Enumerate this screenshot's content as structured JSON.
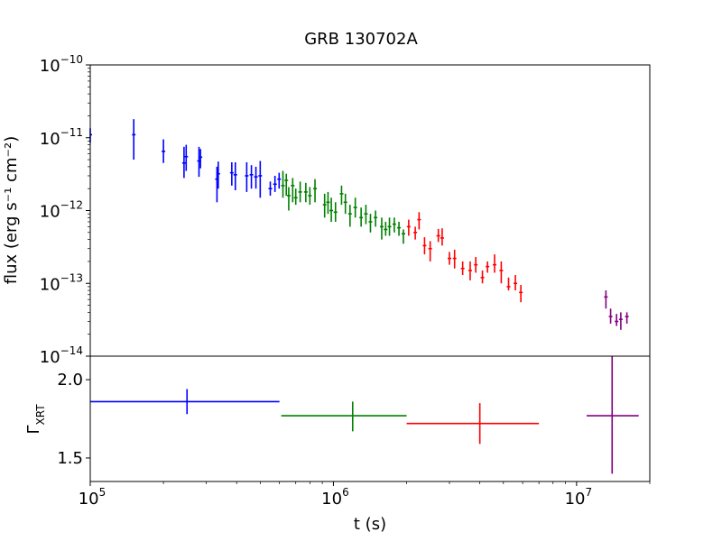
{
  "chart_data": [
    {
      "type": "scatter",
      "title": "GRB 130702A",
      "xlabel": "t (s)",
      "ylabel": "flux (erg s⁻¹ cm⁻²)",
      "xscale": "log",
      "yscale": "log",
      "xlim": [
        100000,
        20000000
      ],
      "ylim": [
        1e-14,
        1e-10
      ],
      "yticks": [
        {
          "base": "10",
          "exp": "−10"
        },
        {
          "base": "10",
          "exp": "−11"
        },
        {
          "base": "10",
          "exp": "−12"
        },
        {
          "base": "10",
          "exp": "−13"
        },
        {
          "base": "10",
          "exp": "−14"
        }
      ],
      "grid": false,
      "series": [
        {
          "color": "#0000ff",
          "points": [
            {
              "x": 100000,
              "y": 1.1e-11,
              "ylo": 8.5e-12,
              "yhi": 1.35e-11
            },
            {
              "x": 151000,
              "y": 1.1e-11,
              "ylo": 5e-12,
              "yhi": 1.8e-11
            },
            {
              "x": 200000,
              "y": 6.5e-12,
              "ylo": 4.5e-12,
              "yhi": 9.5e-12
            },
            {
              "x": 243000,
              "y": 4.5e-12,
              "ylo": 2.8e-12,
              "yhi": 7.5e-12
            },
            {
              "x": 248000,
              "y": 5.5e-12,
              "ylo": 3.5e-12,
              "yhi": 8e-12
            },
            {
              "x": 280000,
              "y": 4.8e-12,
              "ylo": 2.9e-12,
              "yhi": 7.5e-12
            },
            {
              "x": 284000,
              "y": 5.4e-12,
              "ylo": 3.8e-12,
              "yhi": 7e-12
            },
            {
              "x": 332000,
              "y": 2.7e-12,
              "ylo": 1.3e-12,
              "yhi": 4e-12
            },
            {
              "x": 336000,
              "y": 3.2e-12,
              "ylo": 2e-12,
              "yhi": 4.7e-12
            },
            {
              "x": 382000,
              "y": 3.3e-12,
              "ylo": 2.2e-12,
              "yhi": 4.6e-12
            },
            {
              "x": 395000,
              "y": 3.1e-12,
              "ylo": 1.9e-12,
              "yhi": 4.6e-12
            },
            {
              "x": 440000,
              "y": 3e-12,
              "ylo": 1.8e-12,
              "yhi": 4.6e-12
            },
            {
              "x": 460000,
              "y": 3.1e-12,
              "ylo": 2e-12,
              "yhi": 4.2e-12
            },
            {
              "x": 480000,
              "y": 2.9e-12,
              "ylo": 2e-12,
              "yhi": 4e-12
            },
            {
              "x": 500000,
              "y": 3e-12,
              "ylo": 1.5e-12,
              "yhi": 4.8e-12
            },
            {
              "x": 550000,
              "y": 2e-12,
              "ylo": 1.6e-12,
              "yhi": 2.5e-12
            },
            {
              "x": 575000,
              "y": 2.3e-12,
              "ylo": 1.8e-12,
              "yhi": 3e-12
            },
            {
              "x": 598000,
              "y": 2.7e-12,
              "ylo": 2e-12,
              "yhi": 3.3e-12
            }
          ]
        },
        {
          "color": "#008000",
          "points": [
            {
              "x": 620000,
              "y": 2.2e-12,
              "ylo": 1.5e-12,
              "yhi": 3.5e-12
            },
            {
              "x": 640000,
              "y": 2.6e-12,
              "ylo": 1.6e-12,
              "yhi": 3.2e-12
            },
            {
              "x": 655000,
              "y": 1.6e-12,
              "ylo": 1e-12,
              "yhi": 2.1e-12
            },
            {
              "x": 680000,
              "y": 2.2e-12,
              "ylo": 1.3e-12,
              "yhi": 2.8e-12
            },
            {
              "x": 700000,
              "y": 1.5e-12,
              "ylo": 1.2e-12,
              "yhi": 2e-12
            },
            {
              "x": 730000,
              "y": 1.8e-12,
              "ylo": 1.3e-12,
              "yhi": 2.5e-12
            },
            {
              "x": 770000,
              "y": 1.8e-12,
              "ylo": 1.3e-12,
              "yhi": 2.4e-12
            },
            {
              "x": 800000,
              "y": 1.6e-12,
              "ylo": 1.2e-12,
              "yhi": 2.1e-12
            },
            {
              "x": 840000,
              "y": 2e-12,
              "ylo": 1.3e-12,
              "yhi": 2.7e-12
            },
            {
              "x": 920000,
              "y": 1.2e-12,
              "ylo": 8e-13,
              "yhi": 1.7e-12
            },
            {
              "x": 950000,
              "y": 1.3e-12,
              "ylo": 9e-13,
              "yhi": 1.8e-12
            },
            {
              "x": 980000,
              "y": 1e-12,
              "ylo": 7e-13,
              "yhi": 1.5e-12
            },
            {
              "x": 1020000,
              "y": 9.5e-13,
              "ylo": 7e-13,
              "yhi": 1.3e-12
            },
            {
              "x": 1080000,
              "y": 1.7e-12,
              "ylo": 1.2e-12,
              "yhi": 2.2e-12
            },
            {
              "x": 1120000,
              "y": 1.3e-12,
              "ylo": 9e-13,
              "yhi": 1.7e-12
            },
            {
              "x": 1170000,
              "y": 9e-13,
              "ylo": 6e-13,
              "yhi": 1.2e-12
            },
            {
              "x": 1230000,
              "y": 1.1e-12,
              "ylo": 8e-13,
              "yhi": 1.5e-12
            },
            {
              "x": 1300000,
              "y": 8e-13,
              "ylo": 6e-13,
              "yhi": 1.1e-12
            },
            {
              "x": 1360000,
              "y": 9e-13,
              "ylo": 6.5e-13,
              "yhi": 1.2e-12
            },
            {
              "x": 1420000,
              "y": 7e-13,
              "ylo": 5e-13,
              "yhi": 9e-13
            },
            {
              "x": 1490000,
              "y": 8e-13,
              "ylo": 6e-13,
              "yhi": 1e-12
            },
            {
              "x": 1580000,
              "y": 6e-13,
              "ylo": 4e-13,
              "yhi": 8e-13
            },
            {
              "x": 1640000,
              "y": 5.5e-13,
              "ylo": 4.5e-13,
              "yhi": 7e-13
            },
            {
              "x": 1700000,
              "y": 6e-13,
              "ylo": 4.5e-13,
              "yhi": 8e-13
            },
            {
              "x": 1780000,
              "y": 6.5e-13,
              "ylo": 5e-13,
              "yhi": 8e-13
            },
            {
              "x": 1860000,
              "y": 5.8e-13,
              "ylo": 4.5e-13,
              "yhi": 7e-13
            },
            {
              "x": 1940000,
              "y": 4.8e-13,
              "ylo": 3.5e-13,
              "yhi": 5.5e-13
            }
          ]
        },
        {
          "color": "#ff0000",
          "points": [
            {
              "x": 2040000,
              "y": 6e-13,
              "ylo": 4.5e-13,
              "yhi": 7.5e-13
            },
            {
              "x": 2170000,
              "y": 5e-13,
              "ylo": 4e-13,
              "yhi": 6e-13
            },
            {
              "x": 2250000,
              "y": 7.5e-13,
              "ylo": 5.5e-13,
              "yhi": 9.5e-13
            },
            {
              "x": 2370000,
              "y": 3.3e-13,
              "ylo": 2.5e-13,
              "yhi": 4.3e-13
            },
            {
              "x": 2500000,
              "y": 3e-13,
              "ylo": 2e-13,
              "yhi": 3.8e-13
            },
            {
              "x": 2700000,
              "y": 4.5e-13,
              "ylo": 3.7e-13,
              "yhi": 5.6e-13
            },
            {
              "x": 2800000,
              "y": 4.2e-13,
              "ylo": 3.3e-13,
              "yhi": 5.7e-13
            },
            {
              "x": 3000000,
              "y": 2.2e-13,
              "ylo": 1.8e-13,
              "yhi": 2.7e-13
            },
            {
              "x": 3150000,
              "y": 2.2e-13,
              "ylo": 1.6e-13,
              "yhi": 2.9e-13
            },
            {
              "x": 3400000,
              "y": 1.6e-13,
              "ylo": 1.3e-13,
              "yhi": 2e-13
            },
            {
              "x": 3650000,
              "y": 1.5e-13,
              "ylo": 1.1e-13,
              "yhi": 2e-13
            },
            {
              "x": 3850000,
              "y": 1.8e-13,
              "ylo": 1.4e-13,
              "yhi": 2.3e-13
            },
            {
              "x": 4100000,
              "y": 1.2e-13,
              "ylo": 1e-13,
              "yhi": 1.5e-13
            },
            {
              "x": 4300000,
              "y": 1.7e-13,
              "ylo": 1.4e-13,
              "yhi": 2e-13
            },
            {
              "x": 4600000,
              "y": 1.8e-13,
              "ylo": 1.4e-13,
              "yhi": 2.5e-13
            },
            {
              "x": 4900000,
              "y": 1.5e-13,
              "ylo": 1e-13,
              "yhi": 2e-13
            },
            {
              "x": 5250000,
              "y": 9e-14,
              "ylo": 8e-14,
              "yhi": 1.2e-13
            },
            {
              "x": 5600000,
              "y": 1e-13,
              "ylo": 8e-14,
              "yhi": 1.3e-13
            },
            {
              "x": 5900000,
              "y": 7.5e-14,
              "ylo": 5.5e-14,
              "yhi": 9.5e-14
            }
          ]
        },
        {
          "color": "#800080",
          "points": [
            {
              "x": 13200000,
              "y": 6.5e-14,
              "ylo": 4.5e-14,
              "yhi": 8e-14
            },
            {
              "x": 13800000,
              "y": 3.5e-14,
              "ylo": 2.8e-14,
              "yhi": 4.5e-14
            },
            {
              "x": 14600000,
              "y": 3e-14,
              "ylo": 2.6e-14,
              "yhi": 3.8e-14
            },
            {
              "x": 15200000,
              "y": 3.2e-14,
              "ylo": 2.3e-14,
              "yhi": 4e-14
            },
            {
              "x": 16100000,
              "y": 3.5e-14,
              "ylo": 2.8e-14,
              "yhi": 4e-14
            }
          ]
        }
      ]
    },
    {
      "type": "scatter",
      "xlabel": "t (s)",
      "ylabel": "Γ",
      "ylabel_sub": "XRT",
      "xscale": "log",
      "yscale": "linear",
      "xlim": [
        100000,
        20000000
      ],
      "ylim": [
        1.35,
        2.15
      ],
      "yticks": [
        "1.5",
        "2.0"
      ],
      "xticks": [
        {
          "base": "10",
          "exp": "5"
        },
        {
          "base": "10",
          "exp": "6"
        },
        {
          "base": "10",
          "exp": "7"
        }
      ],
      "grid": false,
      "series": [
        {
          "color": "#0000ff",
          "points": [
            {
              "x": 250000,
              "y": 1.86,
              "xlo": 100000,
              "xhi": 600000,
              "ylo": 1.78,
              "yhi": 1.94
            }
          ]
        },
        {
          "color": "#008000",
          "points": [
            {
              "x": 1200000,
              "y": 1.77,
              "xlo": 610000,
              "xhi": 2000000,
              "ylo": 1.67,
              "yhi": 1.86
            }
          ]
        },
        {
          "color": "#ff0000",
          "points": [
            {
              "x": 4000000,
              "y": 1.72,
              "xlo": 2000000,
              "xhi": 7000000,
              "ylo": 1.59,
              "yhi": 1.85
            }
          ]
        },
        {
          "color": "#800080",
          "points": [
            {
              "x": 14000000,
              "y": 1.77,
              "xlo": 11000000,
              "xhi": 18000000,
              "ylo": 1.4,
              "yhi": 2.15
            }
          ]
        }
      ]
    }
  ]
}
